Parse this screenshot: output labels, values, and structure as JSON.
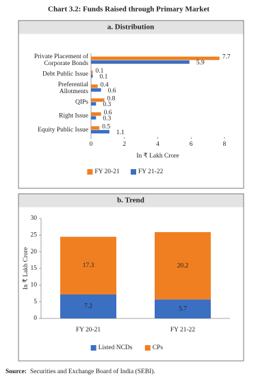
{
  "title": "Chart 3.2: Funds Raised through Primary Market",
  "source_label": "Source:",
  "source": "Securities and Exchange Board of India (SEBI).",
  "chart_data": [
    {
      "type": "bar",
      "orientation": "horizontal",
      "title": "a. Distribution",
      "categories": [
        "Private Placement of\nCorporate Bonds",
        "Debt Public Issue",
        "Preferential\nAllotments",
        "QIPs",
        "Right Issue",
        "Equity Public Issue"
      ],
      "series": [
        {
          "name": "FY 20-21",
          "color": "#f07f21",
          "values": [
            7.7,
            0.1,
            0.4,
            0.8,
            0.6,
            0.5
          ]
        },
        {
          "name": "FY 21-22",
          "color": "#3a6fc2",
          "values": [
            5.9,
            0.1,
            0.6,
            0.3,
            0.3,
            1.1
          ]
        }
      ],
      "xlim": [
        0,
        8
      ],
      "xticks": [
        0,
        2,
        4,
        6,
        8
      ],
      "xlabel": "In ₹ Lakh Crore",
      "legend": "bottom"
    },
    {
      "type": "stacked_bar",
      "title": "b. Trend",
      "categories": [
        "FY 20-21",
        "FY 21-22"
      ],
      "series": [
        {
          "name": "Listed NCDs",
          "color": "#3a6fc2",
          "values": [
            7.2,
            5.7
          ]
        },
        {
          "name": "CPs",
          "color": "#f07f21",
          "values": [
            17.3,
            20.2
          ]
        }
      ],
      "ylim": [
        0,
        30
      ],
      "yticks": [
        0,
        5,
        10,
        15,
        20,
        25,
        30
      ],
      "ylabel": "In ₹ Lakh Crore",
      "legend": "bottom"
    }
  ]
}
